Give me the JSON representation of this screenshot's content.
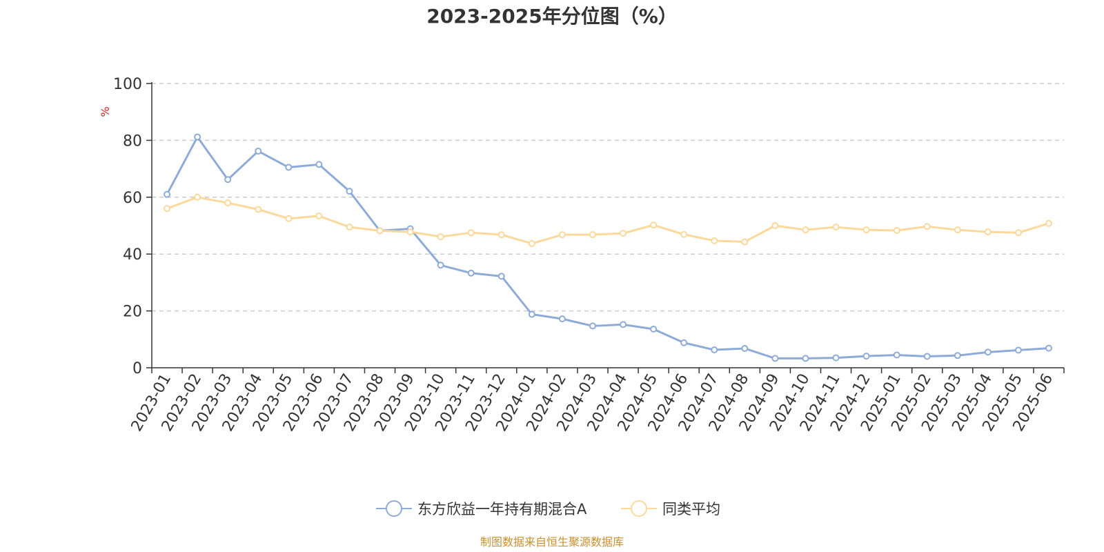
{
  "chart_data": {
    "type": "line",
    "title": "2023-2025年分位图（%）",
    "ylabel": "%",
    "xlabel": "",
    "ylim": [
      0,
      100
    ],
    "yticks": [
      "0",
      "20",
      "40",
      "60",
      "80",
      "100"
    ],
    "grid": true,
    "legend_position": "bottom",
    "categories": [
      "2023-01",
      "2023-02",
      "2023-03",
      "2023-04",
      "2023-05",
      "2023-06",
      "2023-07",
      "2023-08",
      "2023-09",
      "2023-10",
      "2023-11",
      "2023-12",
      "2024-01",
      "2024-02",
      "2024-03",
      "2024-04",
      "2024-05",
      "2024-06",
      "2024-07",
      "2024-08",
      "2024-09",
      "2024-10",
      "2024-11",
      "2024-12",
      "2025-01",
      "2025-02",
      "2025-03",
      "2025-04",
      "2025-05",
      "2025-06"
    ],
    "series": [
      {
        "name": "东方欣益一年持有期混合A",
        "color": "#8eabd8",
        "values": [
          61,
          81.2,
          66.2,
          76.2,
          70.5,
          71.5,
          62.1,
          48.2,
          48.9,
          36.1,
          33.3,
          32.2,
          18.8,
          17.2,
          14.7,
          15.2,
          13.6,
          8.8,
          6.3,
          6.8,
          3.3,
          3.3,
          3.5,
          4.1,
          4.5,
          4,
          4.3,
          5.5,
          6.2,
          6.9
        ]
      },
      {
        "name": "同类平均",
        "color": "#fbd89b",
        "values": [
          56,
          60,
          58,
          55.7,
          52.5,
          53.4,
          49.5,
          48.2,
          47.8,
          46.1,
          47.5,
          46.8,
          43.7,
          46.8,
          46.8,
          47.3,
          50.2,
          46.9,
          44.7,
          44.3,
          50,
          48.5,
          49.5,
          48.5,
          48.3,
          49.7,
          48.5,
          47.8,
          47.5,
          50.8
        ]
      }
    ]
  },
  "source": "制图数据来自恒生聚源数据库"
}
